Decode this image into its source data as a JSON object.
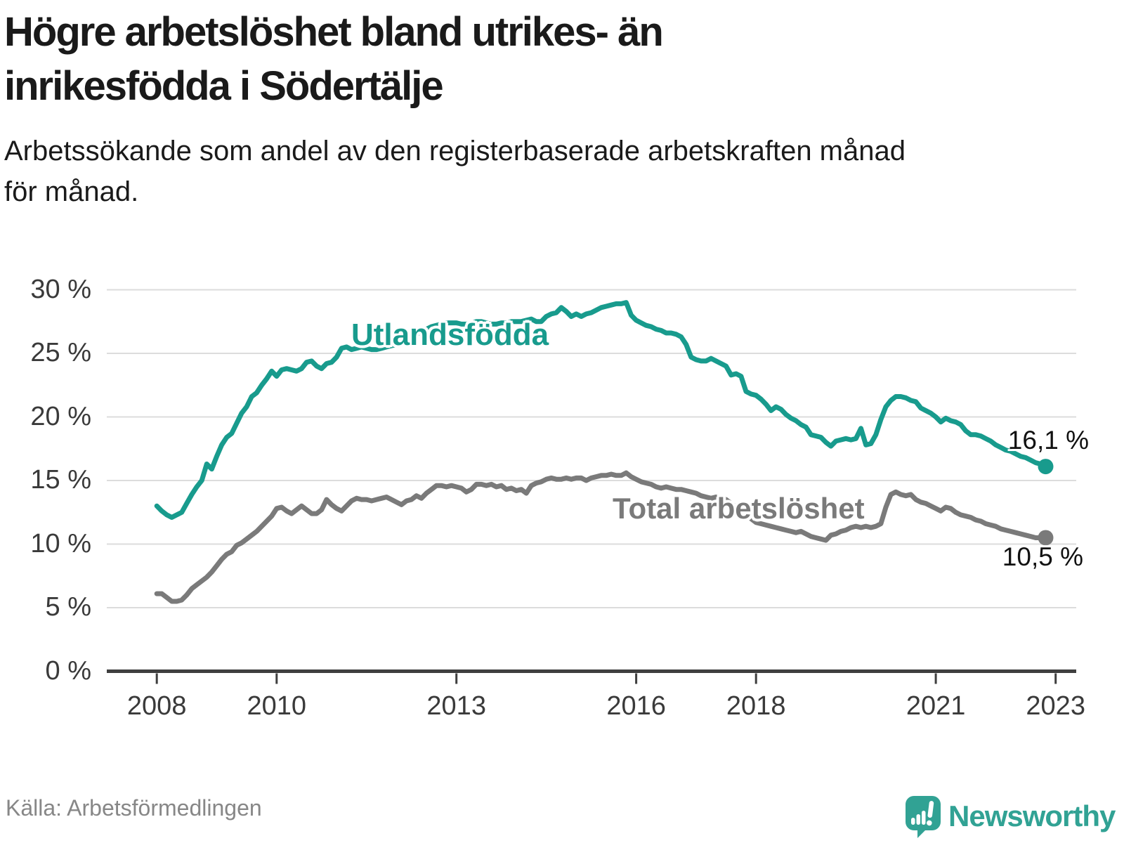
{
  "header": {
    "title_line1": "Högre arbetslöshet bland utrikes- än",
    "title_line2": "inrikesfödda i Södertälje",
    "subtitle_line1": "Arbetssökande som andel av den registerbaserade arbetskraften månad",
    "subtitle_line2": "för månad."
  },
  "chart_data": {
    "type": "line",
    "title": "Högre arbetslöshet bland utrikes- än inrikesfödda i Södertälje",
    "subtitle": "Arbetssökande som andel av den registerbaserade arbetskraften månad för månad.",
    "x_start": "2008-01",
    "x_step_months": 1,
    "x_ticks": [
      "2008",
      "2010",
      "2013",
      "2016",
      "2018",
      "2021",
      "2023"
    ],
    "x_tick_years": [
      2008,
      2010,
      2013,
      2016,
      2018,
      2021,
      2023
    ],
    "y_ticks": [
      "0 %",
      "5 %",
      "10 %",
      "15 %",
      "20 %",
      "25 %",
      "30 %"
    ],
    "y_tick_values": [
      0,
      5,
      10,
      15,
      20,
      25,
      30
    ],
    "ylim": [
      0,
      30.5
    ],
    "grid": "horizontal",
    "gridline_color": "#dcdcdc",
    "axis_color": "#3f3f3f",
    "series": [
      {
        "name": "Utlandsfödda",
        "color": "#189b8d",
        "end_label": "16,1 %",
        "end_value": 16.1,
        "values": [
          13.0,
          12.6,
          12.3,
          12.1,
          12.3,
          12.5,
          13.2,
          13.9,
          14.5,
          15.0,
          16.3,
          15.9,
          16.9,
          17.8,
          18.4,
          18.7,
          19.5,
          20.3,
          20.8,
          21.6,
          21.9,
          22.5,
          23.0,
          23.6,
          23.2,
          23.7,
          23.8,
          23.7,
          23.6,
          23.8,
          24.3,
          24.4,
          24.0,
          23.8,
          24.2,
          24.3,
          24.7,
          25.4,
          25.5,
          25.3,
          25.4,
          25.5,
          25.4,
          25.3,
          25.3,
          25.4,
          25.5,
          25.6,
          25.7,
          25.9,
          26.1,
          26.3,
          26.5,
          26.7,
          26.9,
          27.1,
          27.2,
          27.3,
          27.4,
          27.4,
          27.4,
          27.3,
          27.3,
          27.4,
          27.5,
          27.5,
          27.4,
          27.3,
          27.3,
          27.4,
          27.4,
          27.5,
          27.5,
          27.5,
          27.6,
          27.7,
          27.5,
          27.5,
          27.9,
          28.1,
          28.2,
          28.6,
          28.3,
          27.9,
          28.1,
          27.9,
          28.1,
          28.2,
          28.4,
          28.6,
          28.7,
          28.8,
          28.9,
          28.9,
          29.0,
          28.0,
          27.6,
          27.4,
          27.2,
          27.1,
          26.9,
          26.8,
          26.6,
          26.6,
          26.5,
          26.3,
          25.7,
          24.7,
          24.5,
          24.4,
          24.4,
          24.6,
          24.4,
          24.2,
          24.0,
          23.3,
          23.4,
          23.2,
          22.0,
          21.8,
          21.7,
          21.4,
          21.0,
          20.5,
          20.8,
          20.6,
          20.2,
          19.9,
          19.7,
          19.4,
          19.2,
          18.6,
          18.5,
          18.4,
          18.0,
          17.7,
          18.1,
          18.2,
          18.3,
          18.2,
          18.3,
          19.1,
          17.8,
          17.9,
          18.6,
          19.8,
          20.8,
          21.3,
          21.6,
          21.6,
          21.5,
          21.3,
          21.2,
          20.7,
          20.5,
          20.3,
          20.0,
          19.6,
          19.9,
          19.7,
          19.6,
          19.4,
          18.9,
          18.6,
          18.6,
          18.5,
          18.3,
          18.1,
          17.8,
          17.6,
          17.4,
          17.3,
          17.1,
          16.9,
          16.8,
          16.6,
          16.4,
          16.3,
          16.1
        ]
      },
      {
        "name": "Total arbetslöshet",
        "color": "#7a7a7a",
        "end_label": "10,5 %",
        "end_value": 10.5,
        "values": [
          6.1,
          6.1,
          5.8,
          5.5,
          5.5,
          5.6,
          6.0,
          6.5,
          6.8,
          7.1,
          7.4,
          7.8,
          8.3,
          8.8,
          9.2,
          9.4,
          9.9,
          10.1,
          10.4,
          10.7,
          11.0,
          11.4,
          11.8,
          12.2,
          12.8,
          12.9,
          12.6,
          12.4,
          12.7,
          13.0,
          12.7,
          12.4,
          12.4,
          12.7,
          13.5,
          13.1,
          12.8,
          12.6,
          13.0,
          13.4,
          13.6,
          13.5,
          13.5,
          13.4,
          13.5,
          13.6,
          13.7,
          13.5,
          13.3,
          13.1,
          13.4,
          13.5,
          13.8,
          13.6,
          14.0,
          14.3,
          14.6,
          14.6,
          14.5,
          14.6,
          14.5,
          14.4,
          14.1,
          14.3,
          14.7,
          14.7,
          14.6,
          14.7,
          14.5,
          14.6,
          14.3,
          14.4,
          14.2,
          14.3,
          14.0,
          14.6,
          14.8,
          14.9,
          15.1,
          15.2,
          15.1,
          15.1,
          15.2,
          15.1,
          15.2,
          15.2,
          15.0,
          15.2,
          15.3,
          15.4,
          15.4,
          15.5,
          15.4,
          15.4,
          15.6,
          15.3,
          15.1,
          14.9,
          14.8,
          14.7,
          14.5,
          14.4,
          14.5,
          14.4,
          14.3,
          14.3,
          14.2,
          14.1,
          14.0,
          13.8,
          13.7,
          13.6,
          13.7,
          13.6,
          13.5,
          13.2,
          12.9,
          12.6,
          12.3,
          12.0,
          11.7,
          11.6,
          11.5,
          11.4,
          11.3,
          11.2,
          11.1,
          11.0,
          10.9,
          11.0,
          10.8,
          10.6,
          10.5,
          10.4,
          10.3,
          10.7,
          10.8,
          11.0,
          11.1,
          11.3,
          11.4,
          11.3,
          11.4,
          11.3,
          11.4,
          11.6,
          12.9,
          13.9,
          14.1,
          13.9,
          13.8,
          13.9,
          13.5,
          13.3,
          13.2,
          13.0,
          12.8,
          12.6,
          12.9,
          12.8,
          12.5,
          12.3,
          12.2,
          12.1,
          11.9,
          11.8,
          11.6,
          11.5,
          11.4,
          11.2,
          11.1,
          11.0,
          10.9,
          10.8,
          10.7,
          10.6,
          10.5,
          10.5,
          10.5
        ]
      }
    ]
  },
  "footer": {
    "source": "Källa: Arbetsförmedlingen",
    "brand": "Newsworthy"
  }
}
